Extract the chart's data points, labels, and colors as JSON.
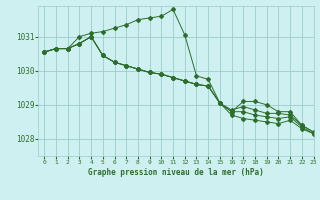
{
  "background_color": "#cff0f0",
  "grid_color": "#99cccc",
  "line_color": "#2d6e2d",
  "title": "Graphe pression niveau de la mer (hPa)",
  "xlim": [
    -0.5,
    23
  ],
  "ylim": [
    1027.5,
    1031.9
  ],
  "yticks": [
    1028,
    1029,
    1030,
    1031
  ],
  "xticks": [
    0,
    1,
    2,
    3,
    4,
    5,
    6,
    7,
    8,
    9,
    10,
    11,
    12,
    13,
    14,
    15,
    16,
    17,
    18,
    19,
    20,
    21,
    22,
    23
  ],
  "series": [
    [
      1030.55,
      1030.65,
      1030.65,
      1031.0,
      1031.1,
      1031.15,
      1031.25,
      1031.35,
      1031.5,
      1031.55,
      1031.6,
      1031.8,
      1031.05,
      1029.85,
      1029.75,
      1029.05,
      1028.8,
      1029.1,
      1029.1,
      1029.0,
      1028.8,
      1028.8,
      1028.4,
      1028.2
    ],
    [
      1030.55,
      1030.65,
      1030.65,
      1030.8,
      1031.0,
      1030.45,
      1030.25,
      1030.15,
      1030.05,
      1029.95,
      1029.9,
      1029.8,
      1029.7,
      1029.6,
      1029.55,
      1029.05,
      1028.85,
      1028.95,
      1028.85,
      1028.75,
      1028.75,
      1028.7,
      1028.4,
      1028.2
    ],
    [
      1030.55,
      1030.65,
      1030.65,
      1030.8,
      1031.0,
      1030.45,
      1030.25,
      1030.15,
      1030.05,
      1029.95,
      1029.9,
      1029.8,
      1029.7,
      1029.6,
      1029.55,
      1029.05,
      1028.8,
      1028.8,
      1028.7,
      1028.65,
      1028.6,
      1028.65,
      1028.35,
      1028.15
    ],
    [
      1030.55,
      1030.65,
      1030.65,
      1030.8,
      1031.0,
      1030.45,
      1030.25,
      1030.15,
      1030.05,
      1029.95,
      1029.9,
      1029.8,
      1029.7,
      1029.6,
      1029.55,
      1029.05,
      1028.7,
      1028.6,
      1028.55,
      1028.5,
      1028.45,
      1028.55,
      1028.3,
      1028.15
    ]
  ]
}
